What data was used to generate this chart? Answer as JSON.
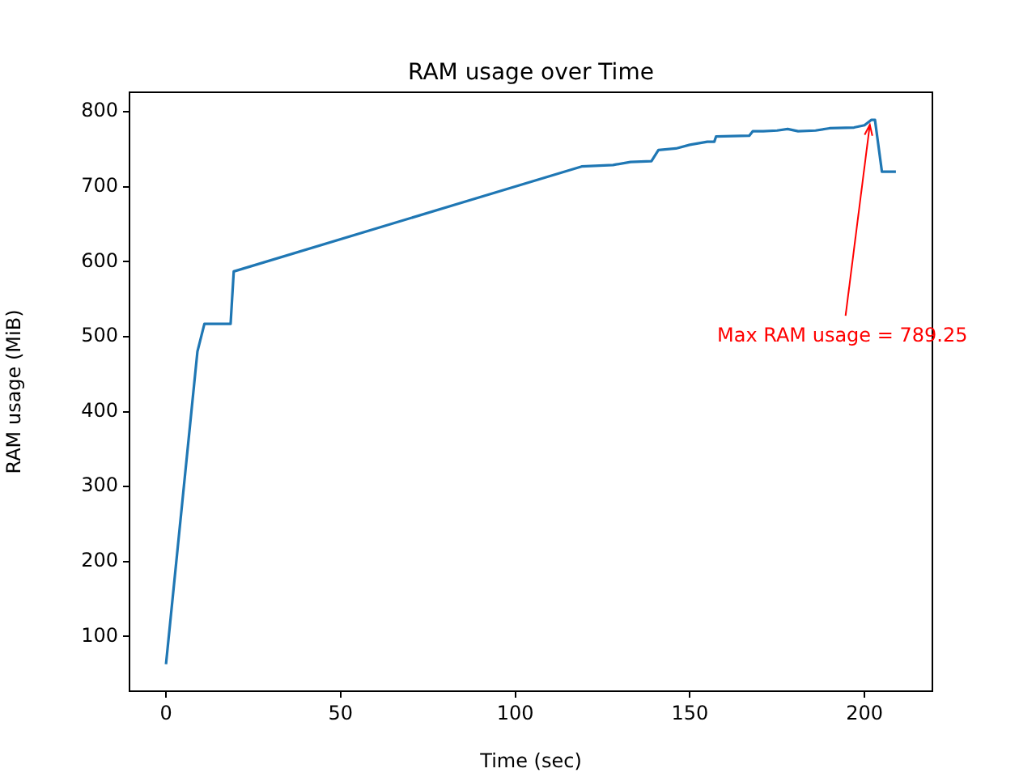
{
  "chart_data": {
    "type": "line",
    "title": "RAM usage over Time",
    "xlabel": "Time (sec)",
    "ylabel": "RAM usage (MiB)",
    "x": [
      0,
      9,
      11,
      18.5,
      19.4,
      119,
      128,
      133,
      139,
      141,
      146,
      150,
      155,
      157,
      157.5,
      167,
      168,
      171,
      175,
      178,
      181,
      186,
      190,
      197,
      200,
      202,
      203,
      205,
      209
    ],
    "series": [
      {
        "color": "#1f77b4",
        "values": [
          63,
          480,
          517,
          517,
          587,
          727,
          729,
          733,
          734,
          749,
          751,
          756,
          760,
          760,
          767,
          768,
          774,
          774,
          775,
          777,
          774,
          775,
          778,
          779,
          782,
          789.25,
          789.25,
          720,
          720
        ]
      }
    ],
    "xlim": [
      -10.45,
      219.45
    ],
    "xticks": [
      0,
      50,
      100,
      150,
      200
    ],
    "ylim": [
      27,
      826
    ],
    "yticks": [
      100,
      200,
      300,
      400,
      500,
      600,
      700,
      800
    ],
    "annotations": [
      {
        "text": "Max RAM usage = 789.25",
        "x": 202,
        "y": 789.25
      }
    ],
    "grid": false,
    "legend": false,
    "marker": "none",
    "line_style": "solid"
  }
}
